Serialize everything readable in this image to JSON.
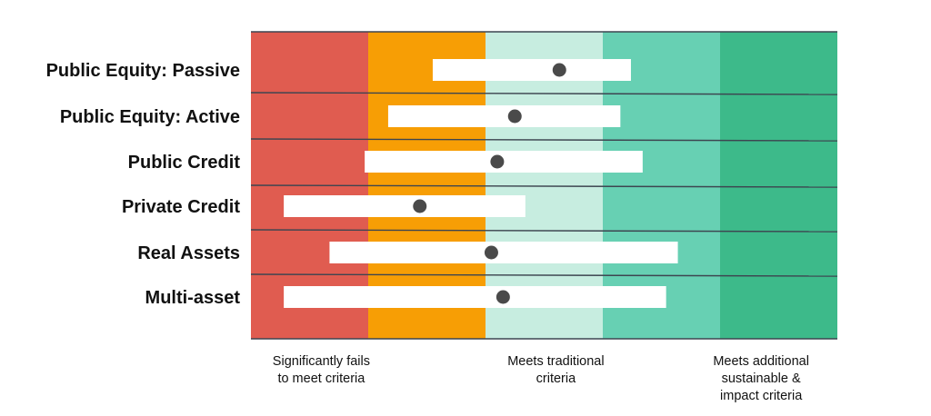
{
  "chart_data": {
    "type": "range-dot",
    "zones": [
      {
        "color": "#e05c50"
      },
      {
        "color": "#f79e05"
      },
      {
        "color": "#c7ede0"
      },
      {
        "color": "#67d0b3"
      },
      {
        "color": "#3dba8a"
      }
    ],
    "scale": [
      0,
      5
    ],
    "grid": true,
    "rows": [
      {
        "label": "Public Equity: Passive",
        "min": 1.55,
        "max": 3.24,
        "value": 2.63
      },
      {
        "label": "Public Equity: Active",
        "min": 1.17,
        "max": 3.15,
        "value": 2.25
      },
      {
        "label": "Public Credit",
        "min": 0.97,
        "max": 3.34,
        "value": 2.1
      },
      {
        "label": "Private Credit",
        "min": 0.28,
        "max": 2.34,
        "value": 1.44
      },
      {
        "label": "Real Assets",
        "min": 0.67,
        "max": 3.64,
        "value": 2.05
      },
      {
        "label": "Multi-asset",
        "min": 0.28,
        "max": 3.54,
        "value": 2.15
      }
    ],
    "x_annotations": [
      {
        "lines": [
          "Significantly fails",
          "to meet criteria"
        ],
        "position": 0.6
      },
      {
        "lines": [
          "Meets traditional",
          "criteria"
        ],
        "position": 2.6
      },
      {
        "lines": [
          "Meets additional",
          "sustainable &",
          "impact criteria"
        ],
        "position": 4.35
      }
    ],
    "colors": {
      "bar": "#ffffff",
      "dot": "#4a4a4a",
      "rule": "#3d4550",
      "text": "#111111"
    }
  }
}
